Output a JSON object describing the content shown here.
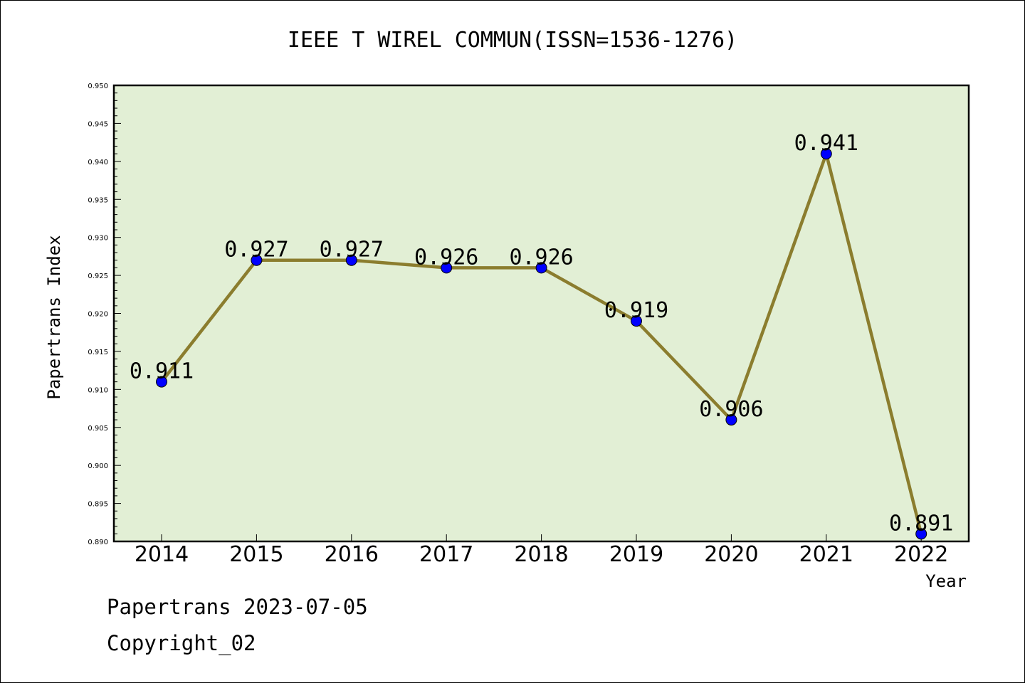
{
  "chart_data": {
    "type": "line",
    "title": "IEEE T WIREL COMMUN(ISSN=1536-1276)",
    "xlabel": "Year",
    "ylabel": "Papertrans Index",
    "categories": [
      "2014",
      "2015",
      "2016",
      "2017",
      "2018",
      "2019",
      "2020",
      "2021",
      "2022"
    ],
    "values": [
      0.911,
      0.927,
      0.927,
      0.926,
      0.926,
      0.919,
      0.906,
      0.941,
      0.891
    ],
    "data_labels": [
      "0.911",
      "0.927",
      "0.927",
      "0.926",
      "0.926",
      "0.919",
      "0.906",
      "0.941",
      "0.891"
    ],
    "ylim": [
      0.89,
      0.95
    ],
    "yticks": [
      "0.890",
      "0.895",
      "0.900",
      "0.905",
      "0.910",
      "0.915",
      "0.920",
      "0.925",
      "0.930",
      "0.935",
      "0.940",
      "0.945",
      "0.950"
    ],
    "grid": false,
    "colors": {
      "plot_background": "#e2efd5",
      "line": "#8b7d2e",
      "marker": "#0000ff"
    }
  },
  "footer": {
    "source": "Papertrans 2023-07-05",
    "copyright": "Copyright_02"
  }
}
